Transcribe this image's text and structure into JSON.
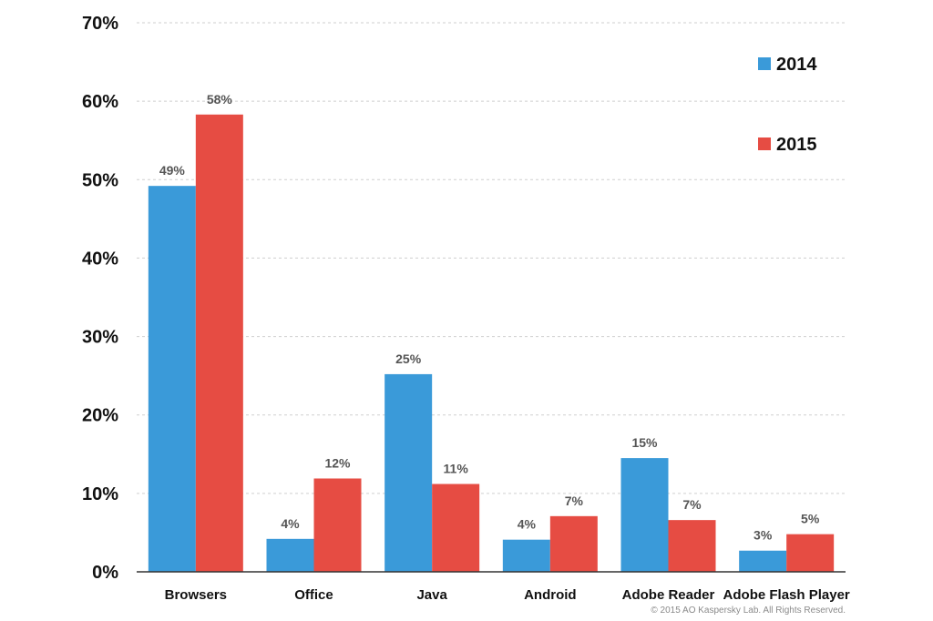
{
  "chart_data": {
    "type": "bar",
    "categories": [
      "Browsers",
      "Office",
      "Java",
      "Android",
      "Adobe Reader",
      "Adobe Flash Player"
    ],
    "series": [
      {
        "name": "2014",
        "values": [
          49.2,
          4.2,
          25.2,
          4.1,
          14.5,
          2.7
        ],
        "labels": [
          "49%",
          "4%",
          "25%",
          "4%",
          "15%",
          "3%"
        ],
        "color": "#3a9ad9"
      },
      {
        "name": "2015",
        "values": [
          58.3,
          11.9,
          11.2,
          7.1,
          6.6,
          4.8
        ],
        "labels": [
          "58%",
          "12%",
          "11%",
          "7%",
          "7%",
          "5%"
        ],
        "color": "#e64c43"
      }
    ],
    "ylim": [
      0,
      70
    ],
    "yticks": [
      0,
      10,
      20,
      30,
      40,
      50,
      60,
      70
    ],
    "ytick_labels": [
      "0%",
      "10%",
      "20%",
      "30%",
      "40%",
      "50%",
      "60%",
      "70%"
    ],
    "grid": true,
    "legend_position": "top-right",
    "title": "",
    "xlabel": "",
    "ylabel": ""
  },
  "footer": {
    "copyright": "© 2015 AO Kaspersky Lab. All Rights Reserved."
  }
}
